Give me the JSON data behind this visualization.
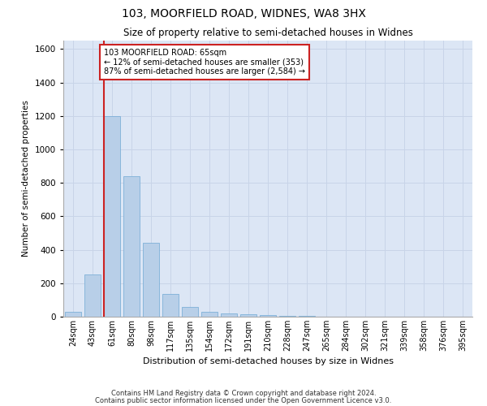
{
  "title": "103, MOORFIELD ROAD, WIDNES, WA8 3HX",
  "subtitle": "Size of property relative to semi-detached houses in Widnes",
  "xlabel": "Distribution of semi-detached houses by size in Widnes",
  "ylabel": "Number of semi-detached properties",
  "footer1": "Contains HM Land Registry data © Crown copyright and database right 2024.",
  "footer2": "Contains public sector information licensed under the Open Government Licence v3.0.",
  "annotation_line1": "103 MOORFIELD ROAD: 65sqm",
  "annotation_line2": "← 12% of semi-detached houses are smaller (353)",
  "annotation_line3": "87% of semi-detached houses are larger (2,584) →",
  "property_size": 65,
  "categories": [
    "24sqm",
    "43sqm",
    "61sqm",
    "80sqm",
    "98sqm",
    "117sqm",
    "135sqm",
    "154sqm",
    "172sqm",
    "191sqm",
    "210sqm",
    "228sqm",
    "247sqm",
    "265sqm",
    "284sqm",
    "302sqm",
    "321sqm",
    "339sqm",
    "358sqm",
    "376sqm",
    "395sqm"
  ],
  "values": [
    30,
    250,
    1200,
    840,
    440,
    135,
    60,
    30,
    20,
    15,
    10,
    5,
    3,
    2,
    1,
    1,
    0,
    0,
    0,
    0,
    0
  ],
  "bar_color": "#b8cfe8",
  "bar_edge_color": "#6fa8d4",
  "grid_color": "#c8d4e8",
  "bg_color": "#dce6f5",
  "vline_color": "#cc2222",
  "annotation_box_color": "#cc2222",
  "ylim": [
    0,
    1650
  ],
  "yticks": [
    0,
    200,
    400,
    600,
    800,
    1000,
    1200,
    1400,
    1600
  ]
}
